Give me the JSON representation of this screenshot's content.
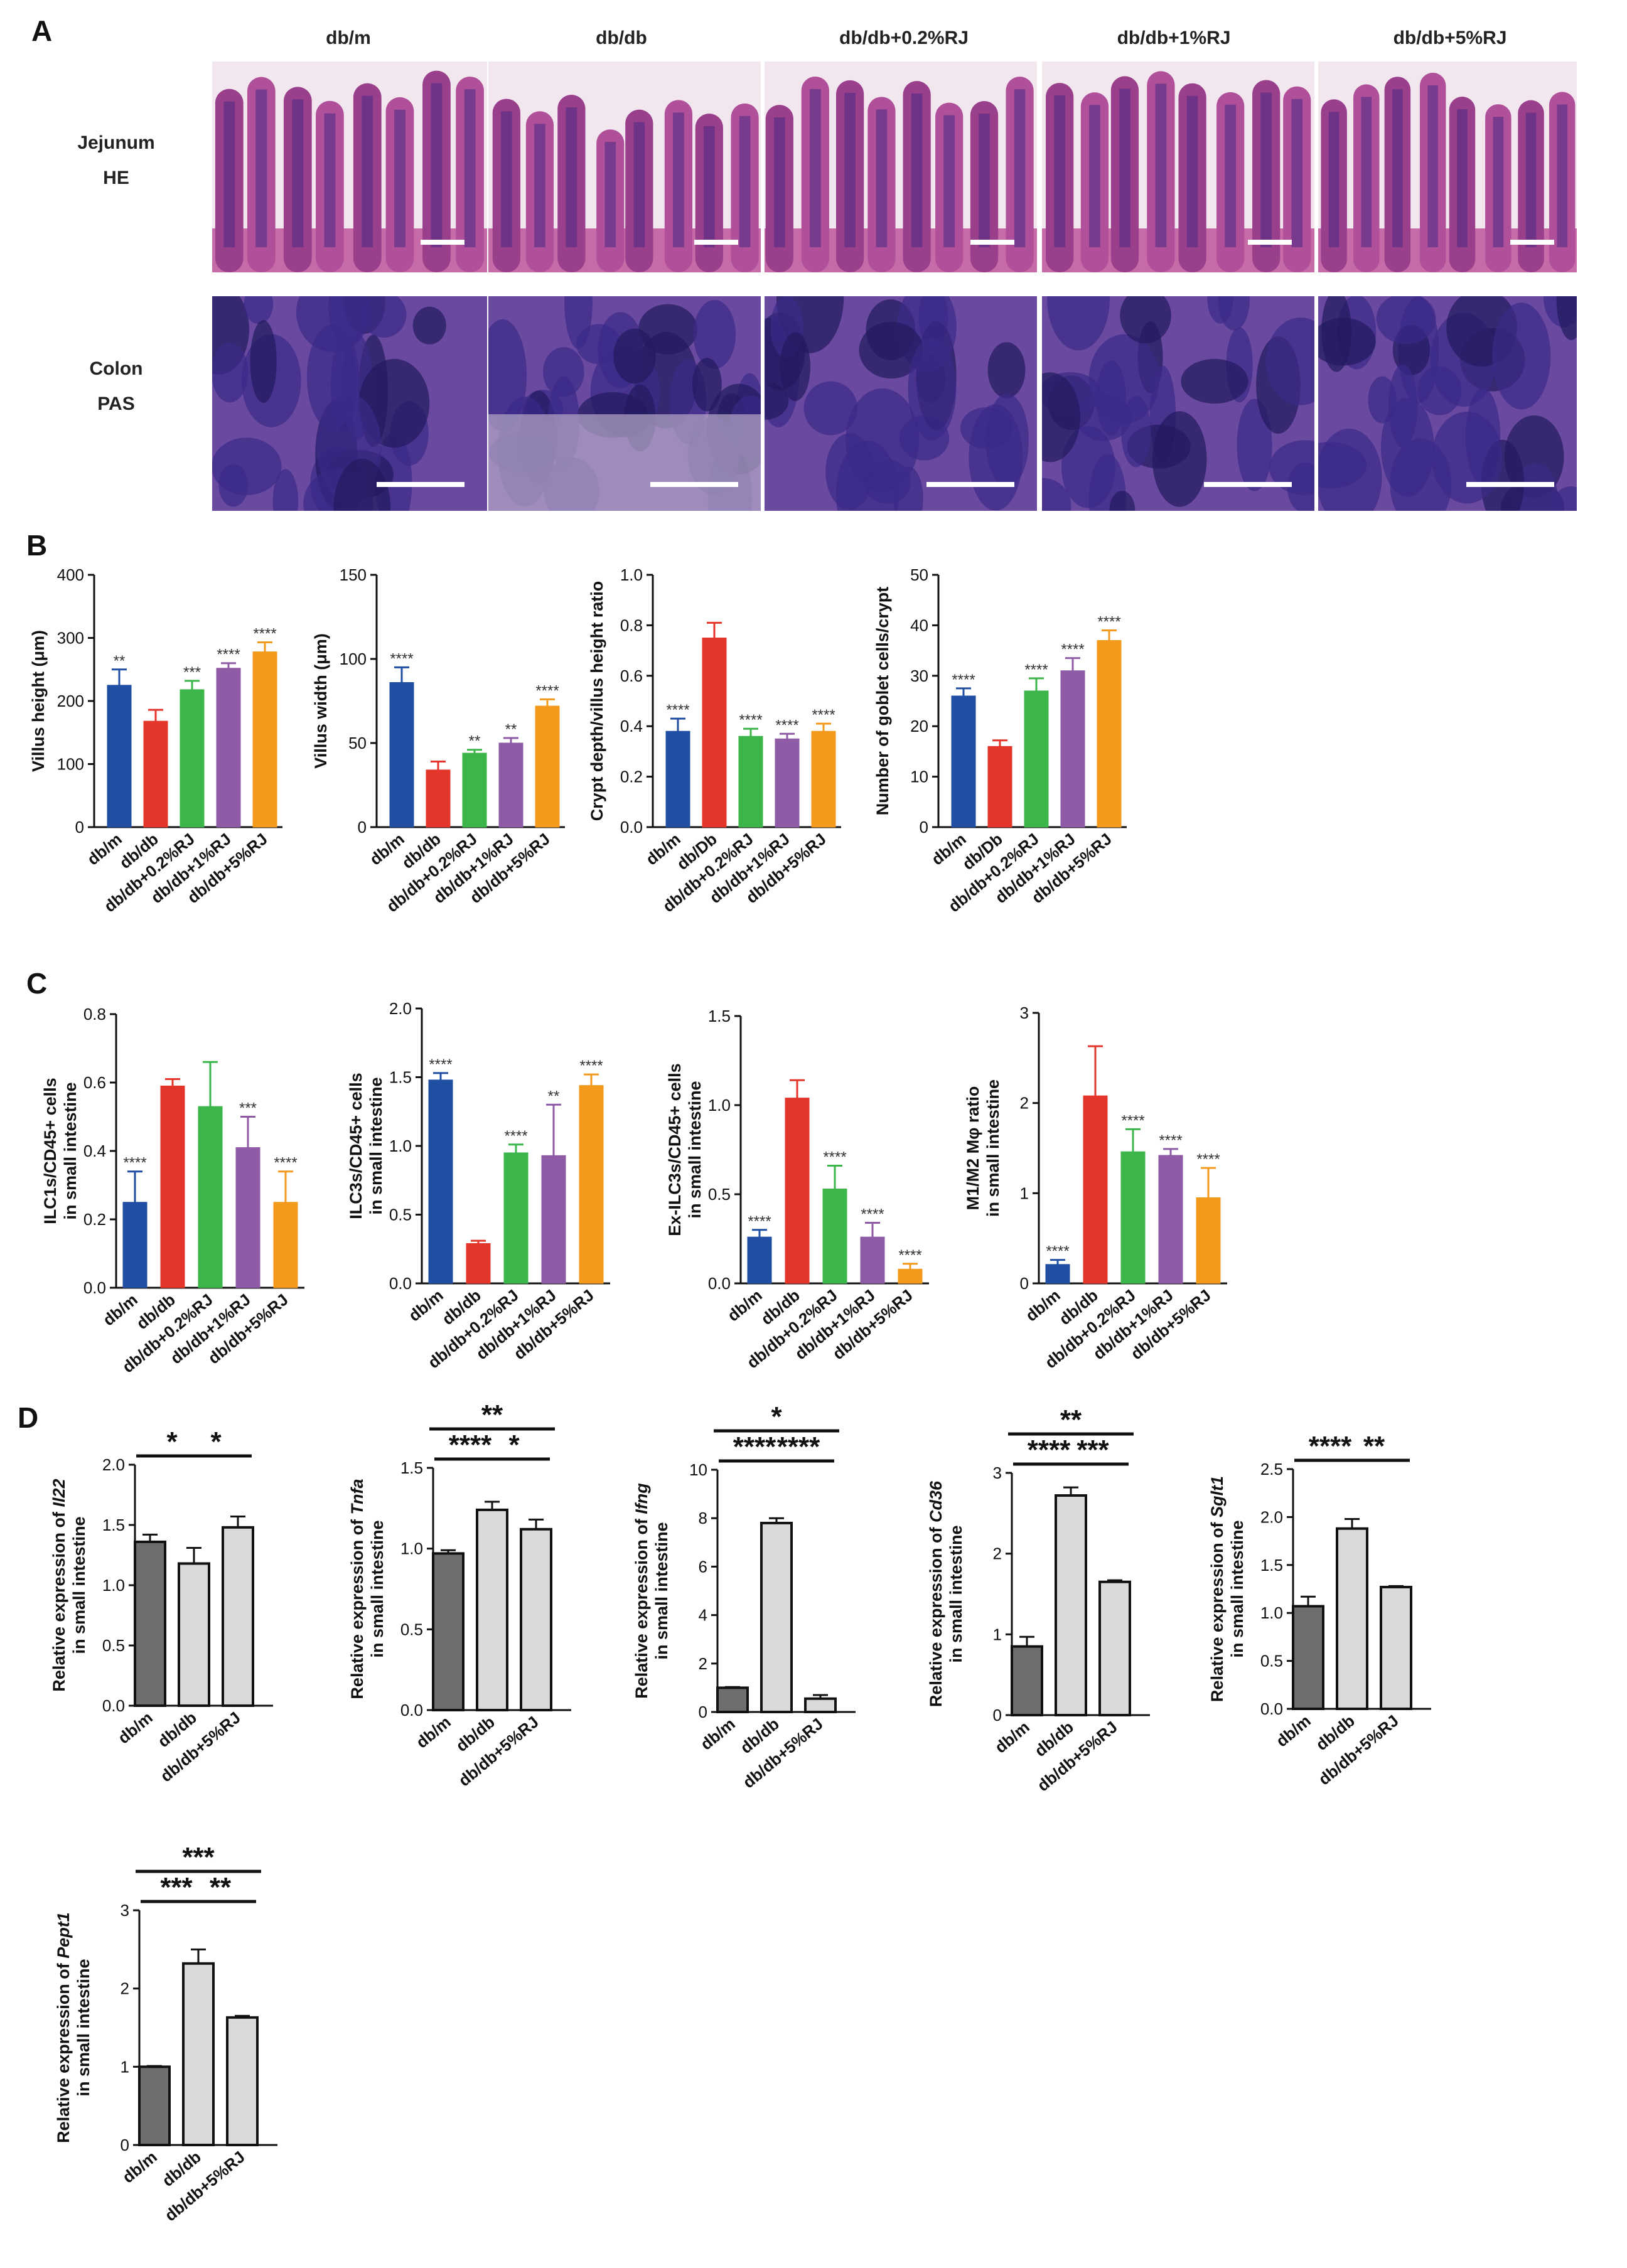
{
  "panels": {
    "A": "A",
    "B": "B",
    "C": "C",
    "D": "D"
  },
  "panel_a": {
    "columns": [
      "db/m",
      "db/db",
      "db/db+0.2%RJ",
      "db/db+1%RJ",
      "db/db+5%RJ"
    ],
    "rows": [
      {
        "line1": "Jejunum",
        "line2": "HE"
      },
      {
        "line1": "Colon",
        "line2": "PAS"
      }
    ]
  },
  "colors": {
    "blue": "#1f4ea3",
    "red": "#e4352a",
    "green": "#3cb54a",
    "purple": "#8f5aa6",
    "orange": "#f39a1d",
    "dark_gray": "#6e6e6e",
    "light_gray": "#d9d9d9"
  },
  "chart_data": [
    {
      "id": "b1",
      "type": "bar",
      "ylabel": "Villus height (μm)",
      "ylabel_line2": "",
      "ylim": [
        0,
        400
      ],
      "yticks": [
        "0",
        "100",
        "200",
        "300",
        "400"
      ],
      "categories": [
        "db/m",
        "db/db",
        "db/db+0.2%RJ",
        "db/db+1%RJ",
        "db/db+5%RJ"
      ],
      "values": [
        225,
        168,
        218,
        252,
        278
      ],
      "errors": [
        25,
        18,
        14,
        8,
        15
      ],
      "sig": [
        "**",
        "",
        "***",
        "****",
        "****"
      ],
      "colors": [
        "blue",
        "red",
        "green",
        "purple",
        "orange"
      ]
    },
    {
      "id": "b2",
      "type": "bar",
      "ylabel": "Villus width (μm)",
      "ylabel_line2": "",
      "ylim": [
        0,
        150
      ],
      "yticks": [
        "0",
        "50",
        "100",
        "150"
      ],
      "categories": [
        "db/m",
        "db/db",
        "db/db+0.2%RJ",
        "db/db+1%RJ",
        "db/db+5%RJ"
      ],
      "values": [
        86,
        34,
        44,
        50,
        72
      ],
      "errors": [
        9,
        5,
        2,
        3,
        4
      ],
      "sig": [
        "****",
        "",
        "**",
        "**",
        "****"
      ],
      "colors": [
        "blue",
        "red",
        "green",
        "purple",
        "orange"
      ]
    },
    {
      "id": "b3",
      "type": "bar",
      "ylabel": "Crypt depth/villus height ratio",
      "ylabel_line2": "",
      "ylim": [
        0,
        1.0
      ],
      "yticks": [
        "0.0",
        "0.2",
        "0.4",
        "0.6",
        "0.8",
        "1.0"
      ],
      "categories": [
        "db/m",
        "db/Db",
        "db/db+0.2%RJ",
        "db/db+1%RJ",
        "db/db+5%RJ"
      ],
      "values": [
        0.38,
        0.75,
        0.36,
        0.35,
        0.38
      ],
      "errors": [
        0.05,
        0.06,
        0.03,
        0.02,
        0.03
      ],
      "sig": [
        "****",
        "",
        "****",
        "****",
        "****"
      ],
      "colors": [
        "blue",
        "red",
        "green",
        "purple",
        "orange"
      ]
    },
    {
      "id": "b4",
      "type": "bar",
      "ylabel": "Number of goblet cells/crypt",
      "ylabel_line2": "",
      "ylim": [
        0,
        50
      ],
      "yticks": [
        "0",
        "10",
        "20",
        "30",
        "40",
        "50"
      ],
      "categories": [
        "db/m",
        "db/Db",
        "db/db+0.2%RJ",
        "db/db+1%RJ",
        "db/db+5%RJ"
      ],
      "values": [
        26,
        16,
        27,
        31,
        37
      ],
      "errors": [
        1.5,
        1.2,
        2.5,
        2.5,
        2.0
      ],
      "sig": [
        "****",
        "",
        "****",
        "****",
        "****"
      ],
      "colors": [
        "blue",
        "red",
        "green",
        "purple",
        "orange"
      ]
    },
    {
      "id": "c1",
      "type": "bar",
      "ylabel": "ILC1s/CD45+ cells",
      "ylabel_line2": "in small intestine",
      "ylim": [
        0,
        0.8
      ],
      "yticks": [
        "0.0",
        "0.2",
        "0.4",
        "0.6",
        "0.8"
      ],
      "categories": [
        "db/m",
        "db/db",
        "db/db+0.2%RJ",
        "db/db+1%RJ",
        "db/db+5%RJ"
      ],
      "values": [
        0.25,
        0.59,
        0.53,
        0.41,
        0.25
      ],
      "errors": [
        0.09,
        0.02,
        0.13,
        0.09,
        0.09
      ],
      "sig": [
        "****",
        "",
        "",
        "***",
        "****"
      ],
      "colors": [
        "blue",
        "red",
        "green",
        "purple",
        "orange"
      ]
    },
    {
      "id": "c2",
      "type": "bar",
      "ylabel": "ILC3s/CD45+ cells",
      "ylabel_line2": "in small intestine",
      "ylim": [
        0,
        2.0
      ],
      "yticks": [
        "0.0",
        "0.5",
        "1.0",
        "1.5",
        "2.0"
      ],
      "categories": [
        "db/m",
        "db/db",
        "db/db+0.2%RJ",
        "db/db+1%RJ",
        "db/db+5%RJ"
      ],
      "values": [
        1.48,
        0.29,
        0.95,
        0.93,
        1.44
      ],
      "errors": [
        0.05,
        0.02,
        0.06,
        0.37,
        0.08
      ],
      "sig": [
        "****",
        "",
        "****",
        "**",
        "****"
      ],
      "colors": [
        "blue",
        "red",
        "green",
        "purple",
        "orange"
      ]
    },
    {
      "id": "c3",
      "type": "bar",
      "ylabel": "Ex-ILC3s/CD45+ cells",
      "ylabel_line2": "in small intestine",
      "ylim": [
        0,
        1.5
      ],
      "yticks": [
        "0.0",
        "0.5",
        "1.0",
        "1.5"
      ],
      "categories": [
        "db/m",
        "db/db",
        "db/db+0.2%RJ",
        "db/db+1%RJ",
        "db/db+5%RJ"
      ],
      "values": [
        0.26,
        1.04,
        0.53,
        0.26,
        0.08
      ],
      "errors": [
        0.04,
        0.1,
        0.13,
        0.08,
        0.03
      ],
      "sig": [
        "****",
        "",
        "****",
        "****",
        "****"
      ],
      "colors": [
        "blue",
        "red",
        "green",
        "purple",
        "orange"
      ]
    },
    {
      "id": "c4",
      "type": "bar",
      "ylabel": "M1/M2 Mφ ratio",
      "ylabel_line2": "in small intestine",
      "ylim": [
        0,
        3
      ],
      "yticks": [
        "0",
        "1",
        "2",
        "3"
      ],
      "categories": [
        "db/m",
        "db/db",
        "db/db+0.2%RJ",
        "db/db+1%RJ",
        "db/db+5%RJ"
      ],
      "values": [
        0.21,
        2.08,
        1.46,
        1.42,
        0.95
      ],
      "errors": [
        0.05,
        0.55,
        0.25,
        0.07,
        0.33
      ],
      "sig": [
        "****",
        "",
        "****",
        "****",
        "****"
      ],
      "colors": [
        "blue",
        "red",
        "green",
        "purple",
        "orange"
      ]
    },
    {
      "id": "d1",
      "type": "bar",
      "ylabel_prefix": "Relative expression of ",
      "ylabel_gene": "Il22",
      "ylabel_line2": "in small intestine",
      "ylim": [
        0,
        2.0
      ],
      "yticks": [
        "0.0",
        "0.5",
        "1.0",
        "1.5",
        "2.0"
      ],
      "categories": [
        "db/m",
        "db/db",
        "db/db+5%RJ"
      ],
      "values": [
        1.36,
        1.18,
        1.48
      ],
      "errors": [
        0.06,
        0.13,
        0.09
      ],
      "colors": [
        "dark_gray",
        "light_gray",
        "light_gray"
      ],
      "comparisons": [
        {
          "a": 0,
          "b": 1,
          "label": "*"
        },
        {
          "a": 1,
          "b": 2,
          "label": "*"
        }
      ]
    },
    {
      "id": "d2",
      "type": "bar",
      "ylabel_prefix": "Relative expression of ",
      "ylabel_gene": "Tnfa",
      "ylabel_line2": "in small intestine",
      "ylim": [
        0,
        1.5
      ],
      "yticks": [
        "0.0",
        "0.5",
        "1.0",
        "1.5"
      ],
      "categories": [
        "db/m",
        "db/db",
        "db/db+5%RJ"
      ],
      "values": [
        0.97,
        1.24,
        1.12
      ],
      "errors": [
        0.02,
        0.05,
        0.06
      ],
      "colors": [
        "dark_gray",
        "light_gray",
        "light_gray"
      ],
      "comparisons": [
        {
          "a": 0,
          "b": 1,
          "label": "****"
        },
        {
          "a": 1,
          "b": 2,
          "label": "*"
        },
        {
          "a": 0,
          "b": 2,
          "label": "**"
        }
      ]
    },
    {
      "id": "d3",
      "type": "bar",
      "ylabel_prefix": "Relative expression of ",
      "ylabel_gene": "Ifng",
      "ylabel_line2": "in small intestine",
      "ylim": [
        0,
        10
      ],
      "yticks": [
        "0",
        "2",
        "4",
        "6",
        "8",
        "10"
      ],
      "categories": [
        "db/m",
        "db/db",
        "db/db+5%RJ"
      ],
      "values": [
        1.0,
        7.8,
        0.55
      ],
      "errors": [
        0.03,
        0.2,
        0.15
      ],
      "colors": [
        "dark_gray",
        "light_gray",
        "light_gray"
      ],
      "comparisons": [
        {
          "a": 0,
          "b": 1,
          "label": "****"
        },
        {
          "a": 1,
          "b": 2,
          "label": "****"
        },
        {
          "a": 0,
          "b": 2,
          "label": "*"
        }
      ]
    },
    {
      "id": "d4",
      "type": "bar",
      "ylabel_prefix": "Relative expression of ",
      "ylabel_gene": "Cd36",
      "ylabel_line2": "in small intestine",
      "ylim": [
        0,
        3
      ],
      "yticks": [
        "0",
        "1",
        "2",
        "3"
      ],
      "categories": [
        "db/m",
        "db/db",
        "db/db+5%RJ"
      ],
      "values": [
        0.85,
        2.72,
        1.65
      ],
      "errors": [
        0.12,
        0.1,
        0.02
      ],
      "colors": [
        "dark_gray",
        "light_gray",
        "light_gray"
      ],
      "comparisons": [
        {
          "a": 0,
          "b": 1,
          "label": "****"
        },
        {
          "a": 1,
          "b": 2,
          "label": "***"
        },
        {
          "a": 0,
          "b": 2,
          "label": "**"
        }
      ]
    },
    {
      "id": "d5",
      "type": "bar",
      "ylabel_prefix": "Relative expression of ",
      "ylabel_gene": "Sglt1",
      "ylabel_line2": "in small intestine",
      "ylim": [
        0,
        2.5
      ],
      "yticks": [
        "0.0",
        "0.5",
        "1.0",
        "1.5",
        "2.0",
        "2.5"
      ],
      "categories": [
        "db/m",
        "db/db",
        "db/db+5%RJ"
      ],
      "values": [
        1.07,
        1.88,
        1.27
      ],
      "errors": [
        0.1,
        0.1,
        0.01
      ],
      "colors": [
        "dark_gray",
        "light_gray",
        "light_gray"
      ],
      "comparisons": [
        {
          "a": 0,
          "b": 1,
          "label": "****"
        },
        {
          "a": 1,
          "b": 2,
          "label": "**"
        }
      ]
    },
    {
      "id": "d6",
      "type": "bar",
      "ylabel_prefix": "Relative expression of ",
      "ylabel_gene": "Pept1",
      "ylabel_line2": "in small intestine",
      "ylim": [
        0,
        3
      ],
      "yticks": [
        "0",
        "1",
        "2",
        "3"
      ],
      "categories": [
        "db/m",
        "db/db",
        "db/db+5%RJ"
      ],
      "values": [
        1.0,
        2.32,
        1.63
      ],
      "errors": [
        0.01,
        0.18,
        0.02
      ],
      "colors": [
        "dark_gray",
        "light_gray",
        "light_gray"
      ],
      "comparisons": [
        {
          "a": 0,
          "b": 1,
          "label": "***"
        },
        {
          "a": 1,
          "b": 2,
          "label": "**"
        },
        {
          "a": 0,
          "b": 2,
          "label": "***"
        }
      ]
    }
  ]
}
